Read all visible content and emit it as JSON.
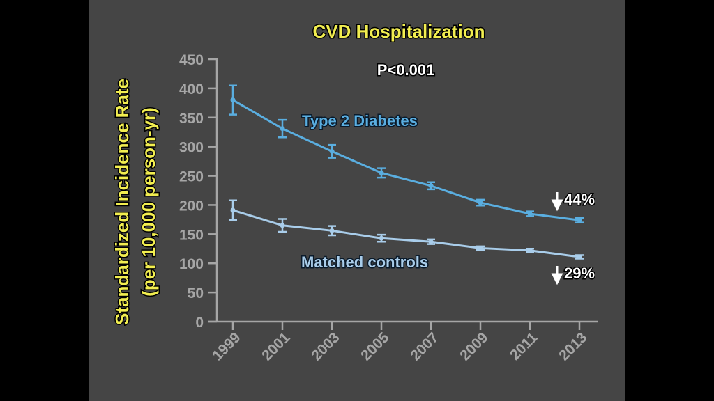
{
  "chart_data": {
    "type": "line",
    "title": "CVD Hospitalization",
    "annotation": "P<0.001",
    "ylabel_line1": "Standardized Incidence Rate",
    "ylabel_line2": "(per 10,000 person-yr)",
    "xlabel": "",
    "ylim": [
      0,
      450
    ],
    "yticks": [
      "0",
      "50",
      "100",
      "150",
      "200",
      "250",
      "300",
      "350",
      "400",
      "450"
    ],
    "ytick_values": [
      0,
      50,
      100,
      150,
      200,
      250,
      300,
      350,
      400,
      450
    ],
    "categories": [
      "1999",
      "2001",
      "2003",
      "2005",
      "2007",
      "2009",
      "2011",
      "2013"
    ],
    "grid": false,
    "series": [
      {
        "name": "Type 2 Diabetes",
        "color": "#5aaee0",
        "values": [
          380,
          331,
          292,
          255,
          233,
          204,
          185,
          174
        ],
        "err": [
          25,
          15,
          11,
          8,
          6,
          5,
          4,
          4
        ],
        "change_label": "44%"
      },
      {
        "name": "Matched controls",
        "color": "#a9cdea",
        "values": [
          191,
          165,
          156,
          143,
          137,
          126,
          122,
          111
        ],
        "err": [
          17,
          11,
          8,
          6,
          4,
          3,
          3,
          3
        ],
        "change_label": "29%"
      }
    ]
  }
}
